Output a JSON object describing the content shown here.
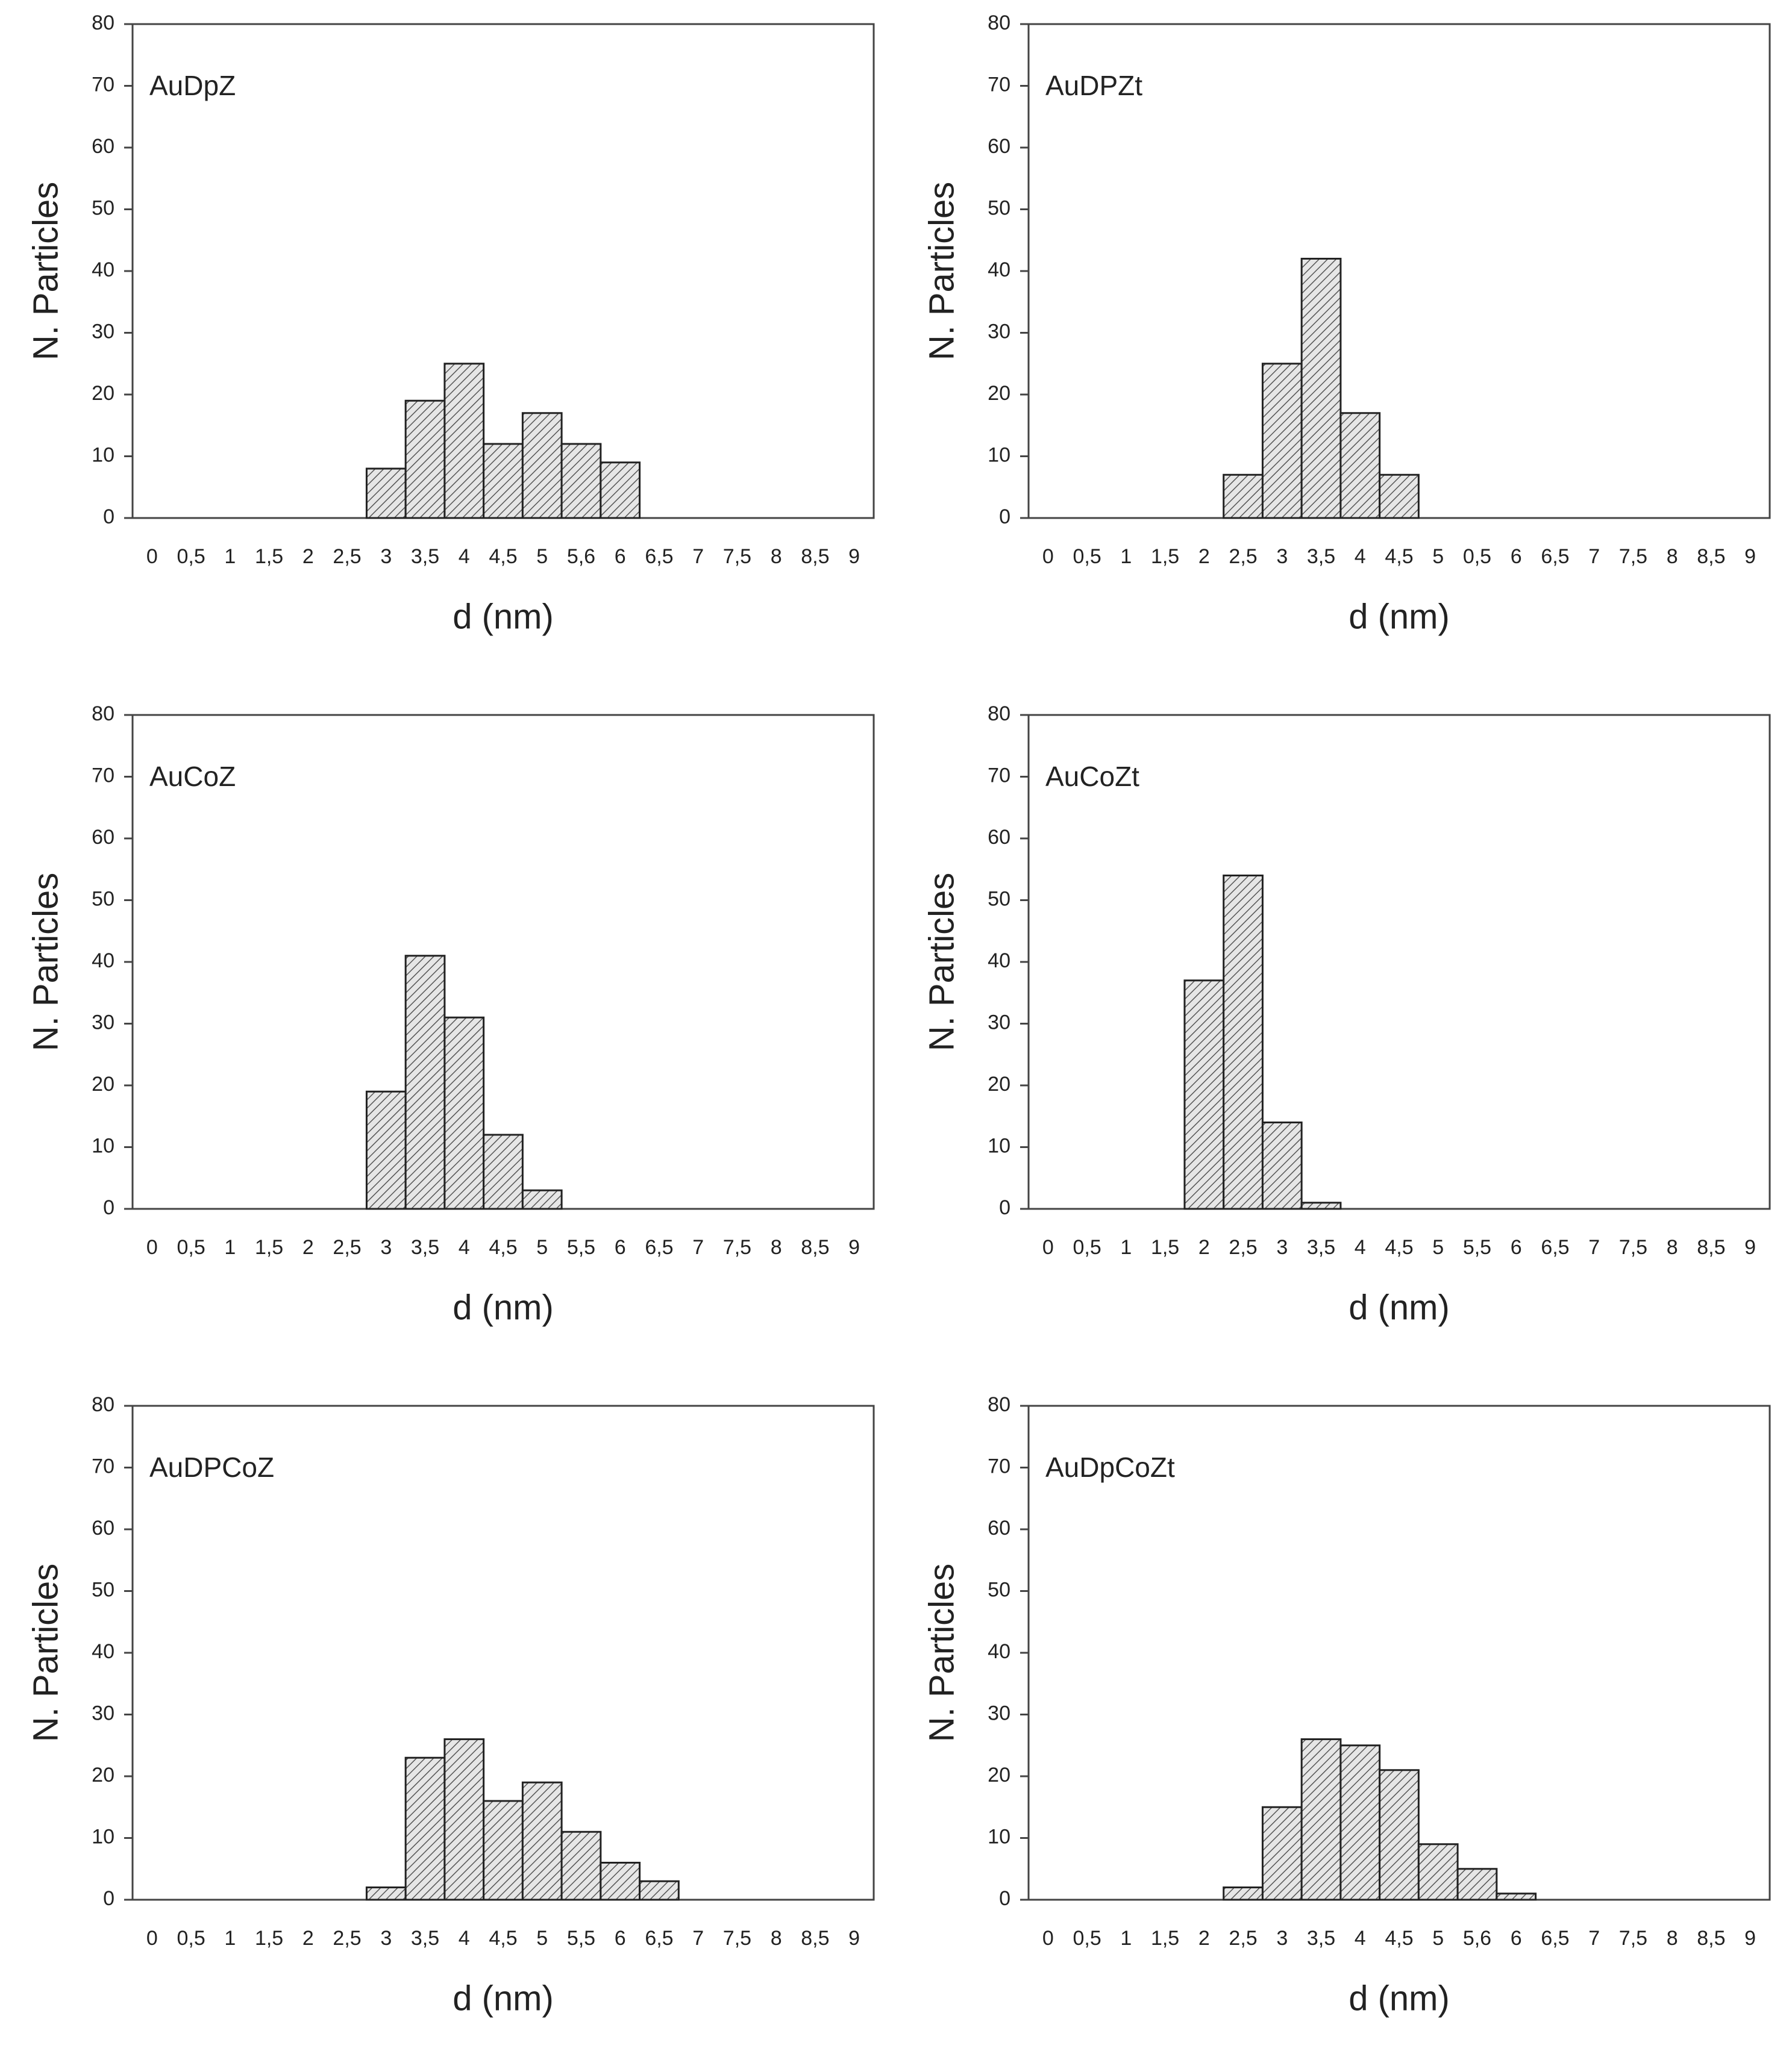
{
  "chart_data": [
    {
      "type": "bar",
      "title": "AuDpZ",
      "xlabel": "d (nm)",
      "ylabel": "N. Particles",
      "categories": [
        "0",
        "0,5",
        "1",
        "1,5",
        "2",
        "2,5",
        "3",
        "3,5",
        "4",
        "4,5",
        "5",
        "5,6",
        "6",
        "6,5",
        "7",
        "7,5",
        "8",
        "8,5",
        "9"
      ],
      "values": [
        0,
        0,
        0,
        0,
        0,
        0,
        8,
        19,
        25,
        12,
        17,
        12,
        9,
        0,
        0,
        0,
        0,
        0,
        0
      ],
      "ylim": [
        0,
        80
      ],
      "yticks": [
        0,
        10,
        20,
        30,
        40,
        50,
        60,
        70,
        80
      ]
    },
    {
      "type": "bar",
      "title": "AuDPZt",
      "xlabel": "d (nm)",
      "ylabel": "N. Particles",
      "categories": [
        "0",
        "0,5",
        "1",
        "1,5",
        "2",
        "2,5",
        "3",
        "3,5",
        "4",
        "4,5",
        "5",
        "0,5",
        "6",
        "6,5",
        "7",
        "7,5",
        "8",
        "8,5",
        "9"
      ],
      "values": [
        0,
        0,
        0,
        0,
        0,
        7,
        25,
        42,
        17,
        7,
        0,
        0,
        0,
        0,
        0,
        0,
        0,
        0,
        0
      ],
      "ylim": [
        0,
        80
      ],
      "yticks": [
        0,
        10,
        20,
        30,
        40,
        50,
        60,
        70,
        80
      ]
    },
    {
      "type": "bar",
      "title": "AuCoZ",
      "xlabel": "d (nm)",
      "ylabel": "N. Particles",
      "categories": [
        "0",
        "0,5",
        "1",
        "1,5",
        "2",
        "2,5",
        "3",
        "3,5",
        "4",
        "4,5",
        "5",
        "5,5",
        "6",
        "6,5",
        "7",
        "7,5",
        "8",
        "8,5",
        "9"
      ],
      "values": [
        0,
        0,
        0,
        0,
        0,
        0,
        19,
        41,
        31,
        12,
        3,
        0,
        0,
        0,
        0,
        0,
        0,
        0,
        0
      ],
      "ylim": [
        0,
        80
      ],
      "yticks": [
        0,
        10,
        20,
        30,
        40,
        50,
        60,
        70,
        80
      ]
    },
    {
      "type": "bar",
      "title": "AuCoZt",
      "xlabel": "d (nm)",
      "ylabel": "N. Particles",
      "categories": [
        "0",
        "0,5",
        "1",
        "1,5",
        "2",
        "2,5",
        "3",
        "3,5",
        "4",
        "4,5",
        "5",
        "5,5",
        "6",
        "6,5",
        "7",
        "7,5",
        "8",
        "8,5",
        "9"
      ],
      "values": [
        0,
        0,
        0,
        0,
        37,
        54,
        14,
        1,
        0,
        0,
        0,
        0,
        0,
        0,
        0,
        0,
        0,
        0,
        0
      ],
      "ylim": [
        0,
        80
      ],
      "yticks": [
        0,
        10,
        20,
        30,
        40,
        50,
        60,
        70,
        80
      ]
    },
    {
      "type": "bar",
      "title": "AuDPCoZ",
      "xlabel": "d (nm)",
      "ylabel": "N. Particles",
      "categories": [
        "0",
        "0,5",
        "1",
        "1,5",
        "2",
        "2,5",
        "3",
        "3,5",
        "4",
        "4,5",
        "5",
        "5,5",
        "6",
        "6,5",
        "7",
        "7,5",
        "8",
        "8,5",
        "9"
      ],
      "values": [
        0,
        0,
        0,
        0,
        0,
        0,
        2,
        23,
        26,
        16,
        19,
        11,
        6,
        3,
        0,
        0,
        0,
        0,
        0
      ],
      "ylim": [
        0,
        80
      ],
      "yticks": [
        0,
        10,
        20,
        30,
        40,
        50,
        60,
        70,
        80
      ]
    },
    {
      "type": "bar",
      "title": "AuDpCoZt",
      "xlabel": "d (nm)",
      "ylabel": "N. Particles",
      "categories": [
        "0",
        "0,5",
        "1",
        "1,5",
        "2",
        "2,5",
        "3",
        "3,5",
        "4",
        "4,5",
        "5",
        "5,6",
        "6",
        "6,5",
        "7",
        "7,5",
        "8",
        "8,5",
        "9"
      ],
      "values": [
        0,
        0,
        0,
        0,
        0,
        2,
        15,
        26,
        25,
        21,
        9,
        5,
        1,
        0,
        0,
        0,
        0,
        0,
        0
      ],
      "ylim": [
        0,
        80
      ],
      "yticks": [
        0,
        10,
        20,
        30,
        40,
        50,
        60,
        70,
        80
      ]
    }
  ]
}
